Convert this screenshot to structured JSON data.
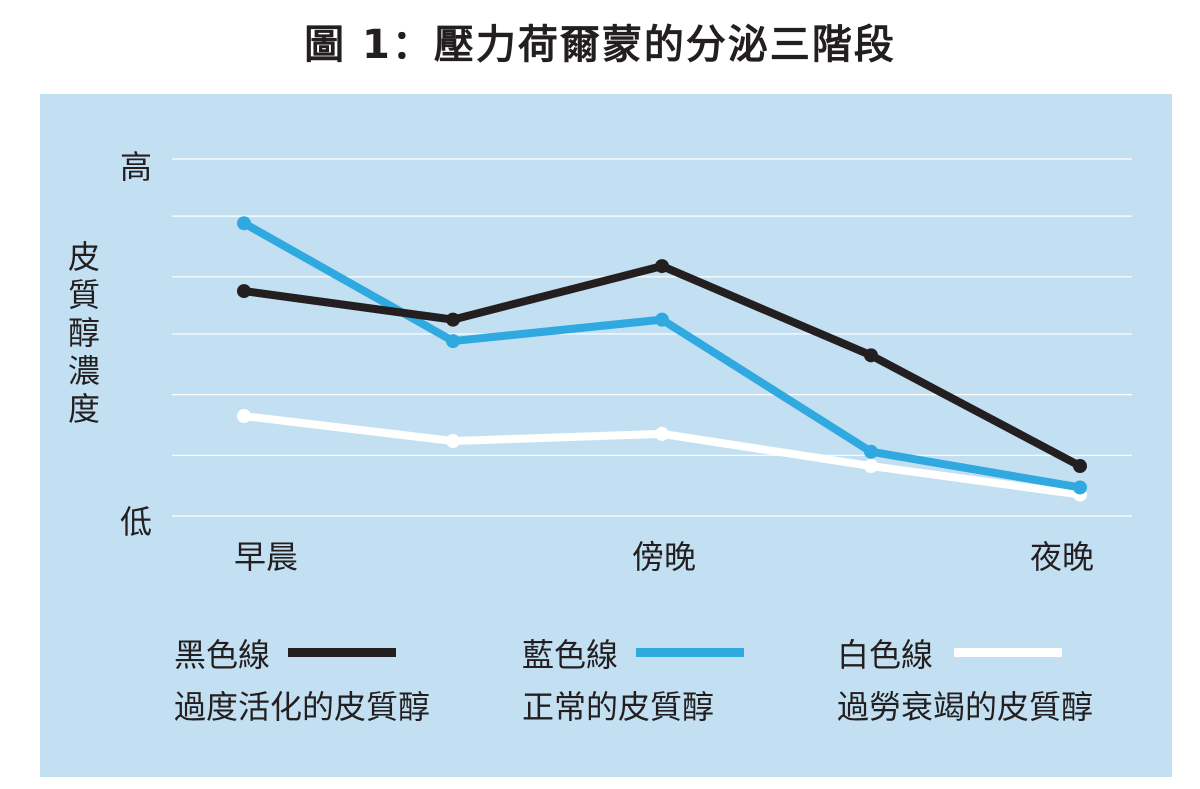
{
  "figure_title": "圖 1：壓力荷爾蒙的分泌三階段",
  "chart_data": {
    "type": "line",
    "title": "圖 1：壓力荷爾蒙的分泌三階段",
    "ylabel": "皮質醇濃度",
    "ylabel_chars": [
      "皮",
      "質",
      "醇",
      "濃",
      "度"
    ],
    "y_tick_labels": {
      "high": "高",
      "low": "低"
    },
    "ylim": [
      0,
      100
    ],
    "x": [
      0,
      1,
      2,
      3,
      4
    ],
    "x_tick_labels": [
      {
        "x": 0,
        "label": "早晨"
      },
      {
        "x": 2,
        "label": "傍晚"
      },
      {
        "x": 4,
        "label": "夜晚"
      }
    ],
    "grid": true,
    "gridlines": [
      0,
      17,
      34,
      51,
      67,
      84,
      100
    ],
    "series": [
      {
        "name": "黑色線",
        "description": "過度活化的皮質醇",
        "color": "#231f20",
        "values": [
          63,
          55,
          70,
          45,
          14
        ]
      },
      {
        "name": "藍色線",
        "description": "正常的皮質醇",
        "color": "#2fa9df",
        "values": [
          82,
          49,
          55,
          18,
          8
        ]
      },
      {
        "name": "白色線",
        "description": "過勞衰竭的皮質醇",
        "color": "#ffffff",
        "values": [
          28,
          21,
          23,
          14,
          6
        ]
      }
    ]
  }
}
